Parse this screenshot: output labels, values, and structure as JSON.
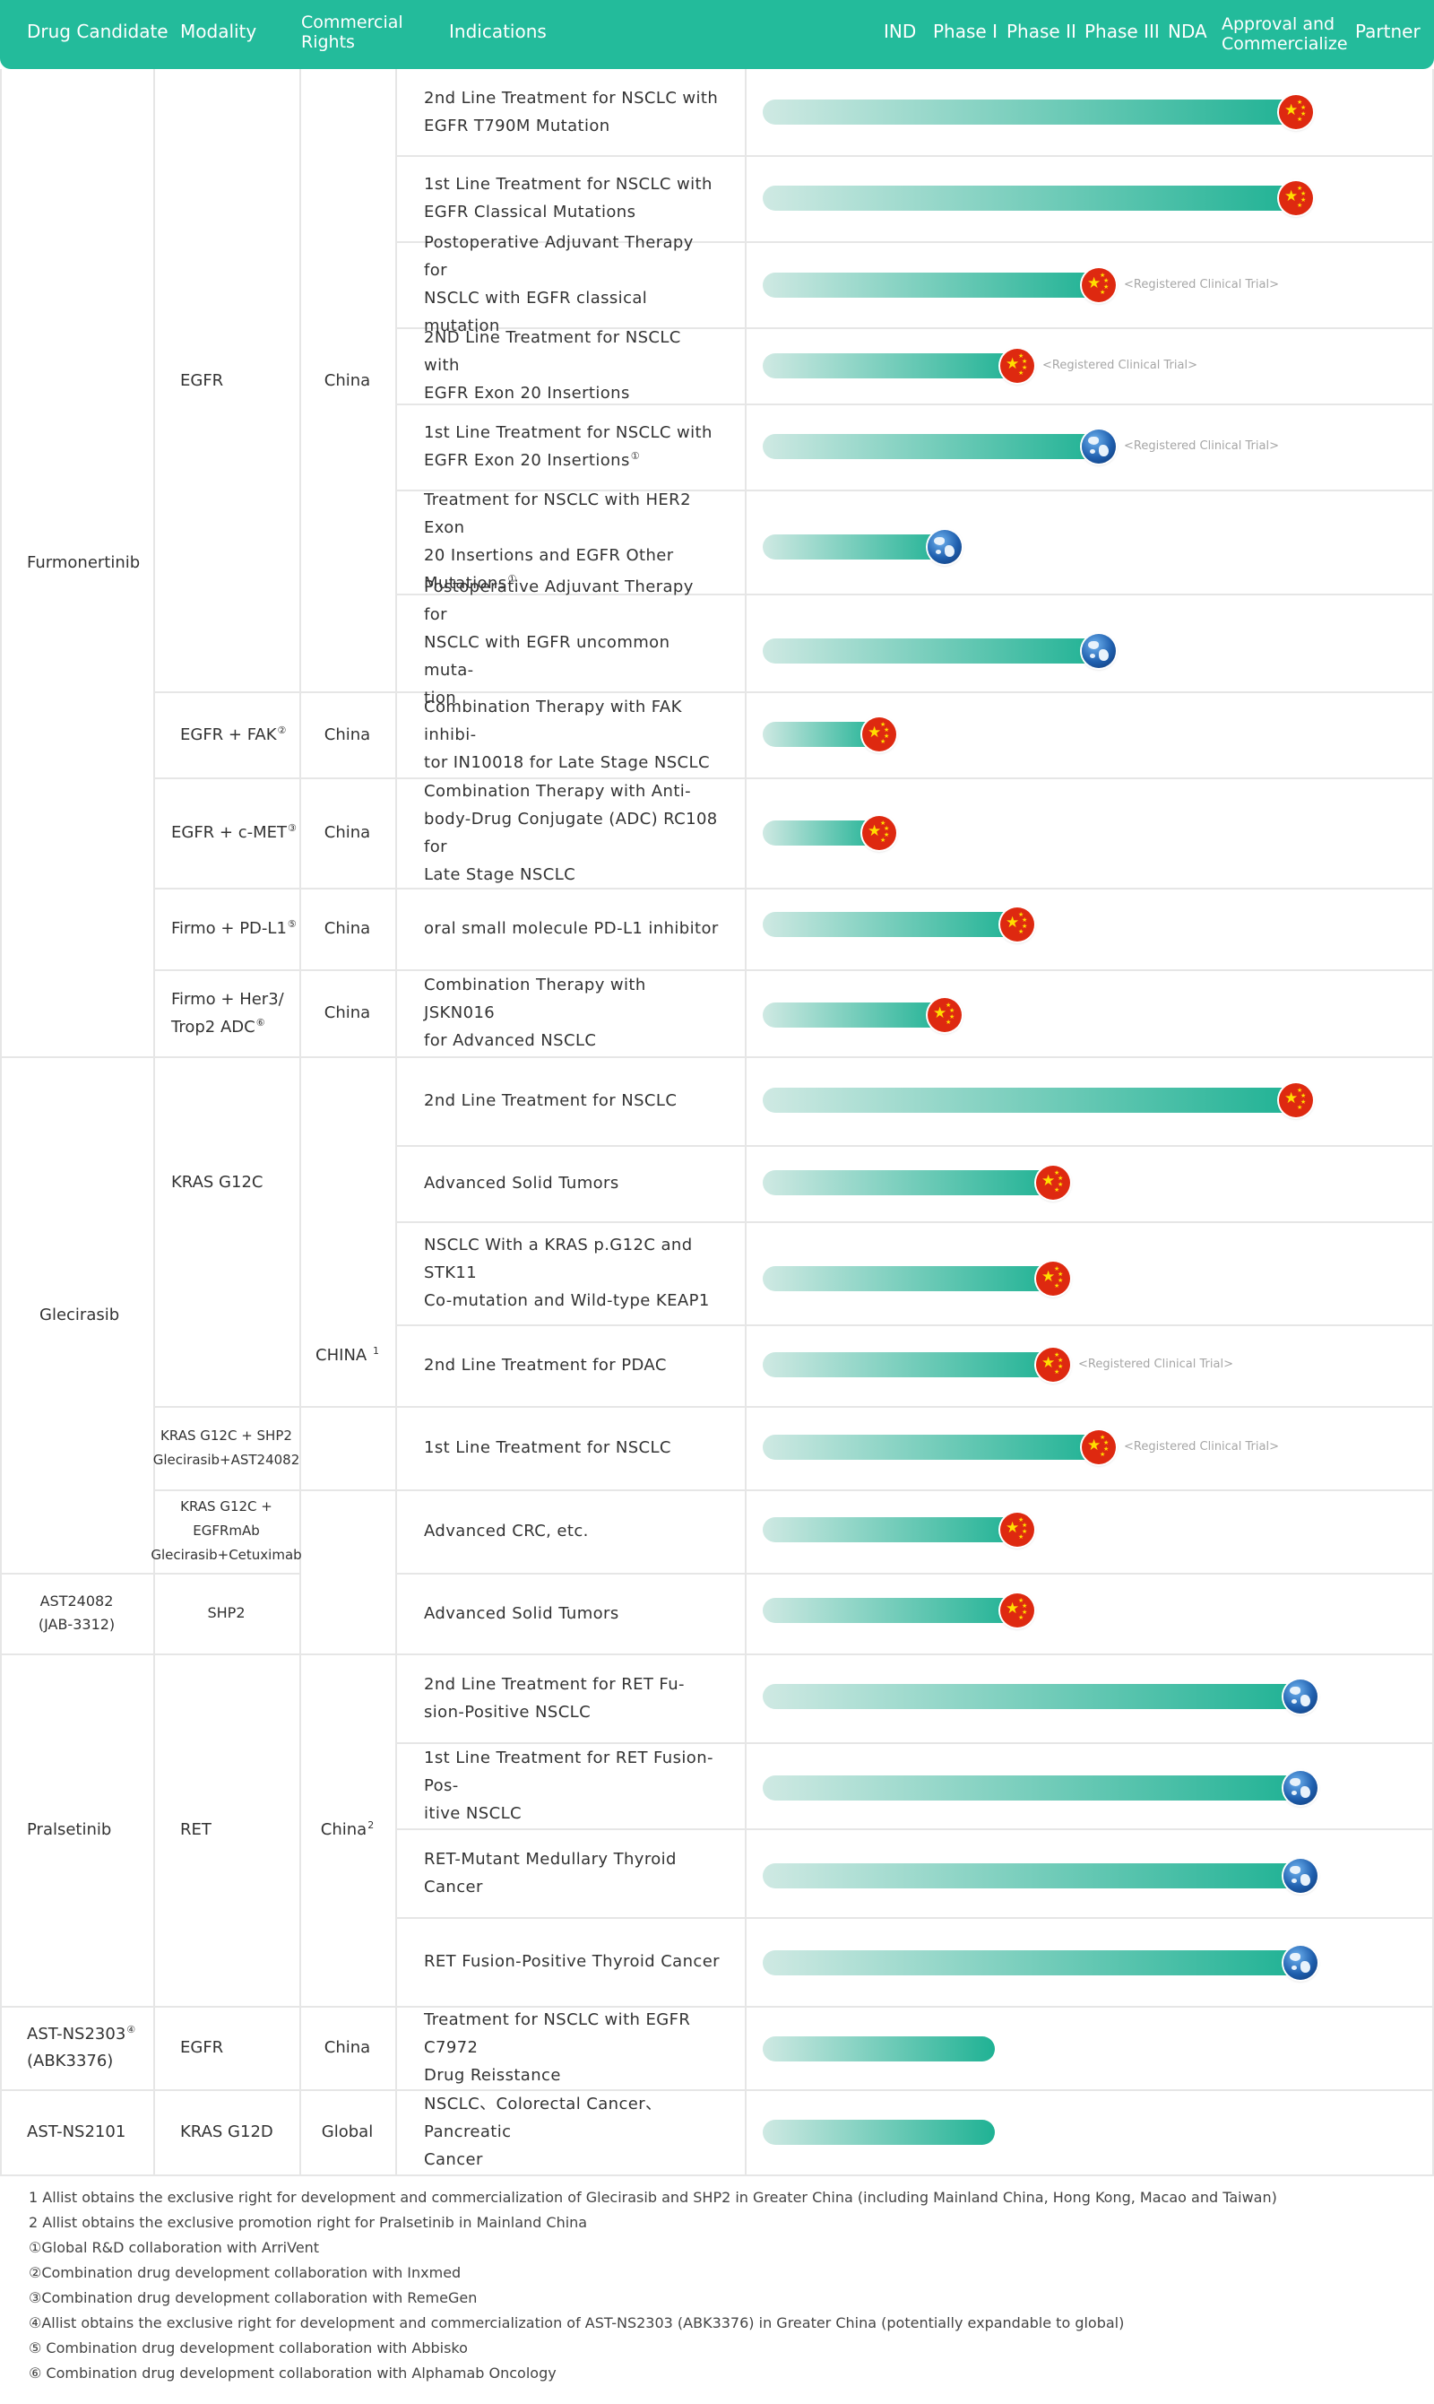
{
  "header": {
    "drug_candidate": "Drug Candidate",
    "modality": "Modality",
    "commercial_rights_1": "Commercial",
    "commercial_rights_2": "Rights",
    "indications": "Indications",
    "ind": "IND",
    "phase1": "Phase I",
    "phase2": "Phase II",
    "phase3": "Phase III",
    "nda": "NDA",
    "approval_1": "Approval and",
    "approval_2": "Commercialize",
    "partner": "Partner"
  },
  "colors": {
    "header_bg": "#23bb9b",
    "bar_end": "#1fb294",
    "bar_start": "#cfe9e3",
    "china_flag": "#de2910"
  },
  "drugs": {
    "furmonertinib": "Furmonertinib",
    "glecirasib": "Glecirasib",
    "ast24082_1": "AST24082",
    "ast24082_2": "(JAB-3312)",
    "pralsetinib": "Pralsetinib",
    "astns2303_1": "AST-NS2303",
    "astns2303_sup": "④",
    "astns2303_2": "(ABK3376)",
    "astns2101": "AST-NS2101"
  },
  "modalities": {
    "egfr": "EGFR",
    "egfr_fak": "EGFR + FAK",
    "egfr_fak_sup": "②",
    "egfr_cmet": "EGFR + c-MET",
    "egfr_cmet_sup": "③",
    "firmo_pdl1": "Firmo + PD-L1",
    "firmo_pdl1_sup": "⑤",
    "firmo_her3_1": "Firmo + Her3/",
    "firmo_her3_2": "Trop2 ADC",
    "firmo_her3_sup": "⑥",
    "kras_g12c": "KRAS G12C",
    "kras_shp2_1": "KRAS G12C + SHP2",
    "kras_shp2_2": "Glecirasib+AST24082",
    "kras_egfrmab_1": "KRAS G12C +",
    "kras_egfrmab_2": "EGFRmAb",
    "kras_egfrmab_3": "Glecirasib+Cetuximab",
    "shp2": "SHP2",
    "ret": "RET",
    "egfr2": "EGFR",
    "kras_g12d": "KRAS G12D"
  },
  "rights": {
    "china": "China",
    "china_caps": "CHINA",
    "china_caps_sup": "1",
    "china_2": "China",
    "china_2_sup": "2",
    "global": "Global"
  },
  "indications": [
    {
      "l1": "2nd Line Treatment for NSCLC with",
      "l2": "EGFR T790M Mutation",
      "marker": "china"
    },
    {
      "l1": "1st Line Treatment for NSCLC with",
      "l2": "EGFR Classical Mutations",
      "marker": "china"
    },
    {
      "l1": "Postoperative Adjuvant Therapy for",
      "l2": "NSCLC with EGFR classical mutation",
      "marker": "china",
      "note": "<Registered Clinical Trial>"
    },
    {
      "l1": "2ND Line Treatment for NSCLC with",
      "l2": "EGFR Exon 20 Insertions",
      "marker": "china",
      "note": "<Registered Clinical Trial>"
    },
    {
      "l1": "1st Line Treatment for NSCLC with",
      "l2": "EGFR Exon 20 Insertions",
      "sup": "①",
      "marker": "global",
      "note": "<Registered Clinical Trial>"
    },
    {
      "l1": "Treatment for NSCLC with HER2 Exon",
      "l2": "20 Insertions and EGFR Other",
      "l3": "Mutations",
      "sup": "①",
      "marker": "global"
    },
    {
      "l1": "Postoperative Adjuvant Therapy for",
      "l2": "NSCLC with EGFR uncommon muta-",
      "l3": "tion",
      "marker": "global"
    },
    {
      "l1": "Combination Therapy with FAK inhibi-",
      "l2": "tor IN10018 for Late Stage NSCLC",
      "marker": "china"
    },
    {
      "l1": "Combination Therapy with Anti-",
      "l2": "body-Drug Conjugate (ADC) RC108 for",
      "l3": "Late Stage NSCLC",
      "marker": "china"
    },
    {
      "l1": "oral small molecule PD-L1 inhibitor",
      "marker": "china"
    },
    {
      "l1": "Combination Therapy with JSKN016",
      "l2": "for Advanced NSCLC",
      "marker": "china"
    },
    {
      "l1": "2nd Line Treatment for NSCLC",
      "marker": "china"
    },
    {
      "l1": "Advanced Solid Tumors",
      "marker": "china"
    },
    {
      "l1": "NSCLC With a KRAS p.G12C and STK11",
      "l2": "Co-mutation and Wild-type KEAP1",
      "marker": "china"
    },
    {
      "l1": "2nd Line Treatment for PDAC",
      "marker": "china",
      "note": "<Registered Clinical Trial>"
    },
    {
      "l1": "1st Line Treatment for NSCLC",
      "marker": "china",
      "note": "<Registered Clinical Trial>"
    },
    {
      "l1": "Advanced CRC, etc.",
      "marker": "china"
    },
    {
      "l1": "Advanced Solid Tumors",
      "marker": "china"
    },
    {
      "l1": "2nd Line Treatment for RET Fu-",
      "l2": "sion-Positive NSCLC",
      "marker": "global"
    },
    {
      "l1": "1st Line Treatment for RET Fusion-Pos-",
      "l2": "itive NSCLC",
      "marker": "global"
    },
    {
      "l1": "RET-Mutant Medullary Thyroid Cancer",
      "marker": "global"
    },
    {
      "l1": "RET Fusion-Positive Thyroid Cancer",
      "marker": "global"
    },
    {
      "l1": "Treatment for NSCLC with EGFR C7972",
      "l2": "Drug Reisstance",
      "marker": "none"
    },
    {
      "l1": "NSCLC、Colorectal Cancer、Pancreatic",
      "l2": "Cancer",
      "marker": "none"
    }
  ],
  "footnotes": [
    "1 Allist obtains the exclusive right for development and commercialization of Glecirasib and SHP2 in Greater China (including Mainland China, Hong Kong, Macao and Taiwan)",
    "2 Allist obtains the exclusive promotion right for Pralsetinib in Mainland China",
    "①Global R&D collaboration with ArriVent",
    "②Combination drug development collaboration with Inxmed",
    "③Combination drug development collaboration with RemeGen",
    "④Allist obtains the exclusive right for development and commercialization of AST-NS2303 (ABK3376) in Greater China (potentially expandable to global)",
    "⑤ Combination drug development collaboration with Abbisko",
    "⑥ Combination drug development collaboration with Alphamab Oncology"
  ]
}
